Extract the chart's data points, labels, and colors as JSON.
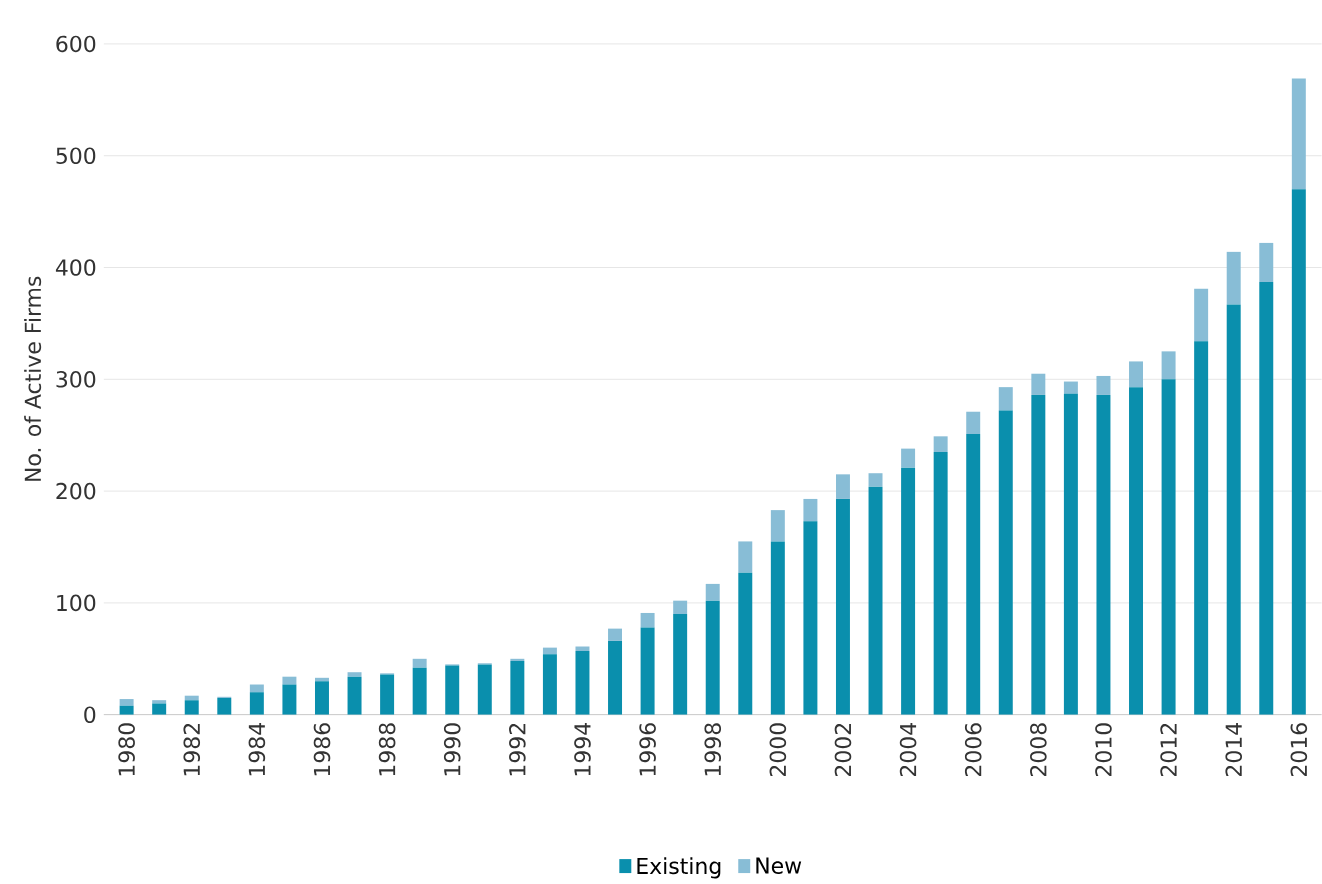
{
  "chart_data": {
    "type": "bar",
    "stacked": true,
    "ylabel": "No. of Active Firms",
    "categories": [
      "1980",
      null,
      "1982",
      null,
      "1984",
      null,
      "1986",
      null,
      "1988",
      null,
      "1990",
      null,
      "1992",
      null,
      "1994",
      null,
      "1996",
      null,
      "1998",
      null,
      "2000",
      null,
      "2002",
      null,
      "2004",
      null,
      "2006",
      null,
      "2008",
      null,
      "2010",
      null,
      "2012",
      null,
      "2014",
      null,
      "2016"
    ],
    "series": [
      {
        "name": "Existing",
        "color": "#0a8fad",
        "values": [
          8,
          10,
          13,
          15,
          20,
          27,
          30,
          34,
          36,
          42,
          44,
          45,
          48,
          54,
          57,
          66,
          78,
          90,
          102,
          127,
          155,
          173,
          193,
          204,
          221,
          235,
          251,
          272,
          286,
          287,
          286,
          293,
          300,
          334,
          367,
          387,
          470
        ]
      },
      {
        "name": "New",
        "color": "#88bdd6",
        "values": [
          6,
          3,
          4,
          1,
          7,
          7,
          3,
          4,
          1,
          8,
          1,
          1,
          2,
          6,
          4,
          11,
          13,
          12,
          15,
          28,
          28,
          20,
          22,
          12,
          17,
          14,
          20,
          21,
          19,
          11,
          17,
          23,
          25,
          47,
          47,
          35,
          99
        ]
      }
    ],
    "ylim": [
      0,
      600
    ],
    "yticks": [
      0,
      100,
      200,
      300,
      400,
      500,
      600
    ],
    "grid": "y",
    "legend": "bottom"
  }
}
